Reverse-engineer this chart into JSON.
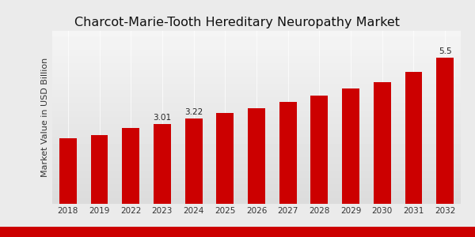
{
  "title": "Charcot-Marie-Tooth Hereditary Neuropathy Market",
  "ylabel": "Market Value in USD Billion",
  "categories": [
    "2018",
    "2019",
    "2022",
    "2023",
    "2024",
    "2025",
    "2026",
    "2027",
    "2028",
    "2029",
    "2030",
    "2031",
    "2032"
  ],
  "values": [
    2.45,
    2.58,
    2.85,
    3.01,
    3.22,
    3.42,
    3.6,
    3.82,
    4.08,
    4.32,
    4.58,
    4.95,
    5.5
  ],
  "bar_color": "#cc0000",
  "annotations": {
    "2023": "3.01",
    "2024": "3.22",
    "2032": "5.5"
  },
  "ylim": [
    0,
    6.5
  ],
  "title_fontsize": 11.5,
  "ylabel_fontsize": 8,
  "tick_fontsize": 7.5,
  "annotation_fontsize": 7.5,
  "bg_top_color": "#f5f5f5",
  "bg_bottom_color": "#d8d8d8",
  "divider_color": "#ffffff",
  "bottom_strip_color": "#cc0000"
}
